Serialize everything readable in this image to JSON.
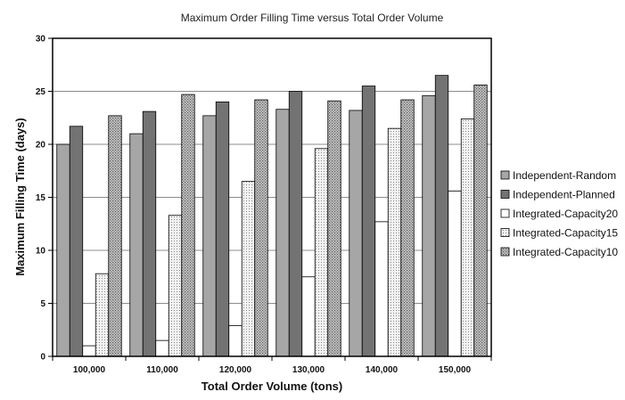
{
  "chart_data": {
    "type": "bar",
    "title": "Maximum Order Filling Time versus Total Order Volume",
    "xlabel": "Total Order Volume (tons)",
    "ylabel": "Maximum Filling Time (days)",
    "ylim": [
      0,
      30
    ],
    "yticks": [
      0,
      5,
      10,
      15,
      20,
      25,
      30
    ],
    "grid": true,
    "legend_position": "right",
    "categories": [
      "100,000",
      "110,000",
      "120,000",
      "130,000",
      "140,000",
      "150,000"
    ],
    "series": [
      {
        "name": "Independent-Random",
        "color": "#a6a6a6",
        "pattern": "solid",
        "values": [
          20.0,
          21.0,
          22.7,
          23.3,
          23.2,
          24.6
        ]
      },
      {
        "name": "Independent-Planned",
        "color": "#737373",
        "pattern": "solid",
        "values": [
          21.7,
          23.1,
          24.0,
          25.0,
          25.5,
          26.5
        ]
      },
      {
        "name": "Integrated-Capacity20",
        "color": "#ffffff",
        "pattern": "solid",
        "values": [
          1.0,
          1.5,
          2.9,
          7.5,
          12.7,
          15.6
        ]
      },
      {
        "name": "Integrated-Capacity15",
        "color": "#e8e8e8",
        "pattern": "fine-dots",
        "values": [
          7.8,
          13.3,
          16.5,
          19.6,
          21.5,
          22.4
        ]
      },
      {
        "name": "Integrated-Capacity10",
        "color": "#b5b5b5",
        "pattern": "dense-dots",
        "values": [
          22.7,
          24.7,
          24.2,
          24.1,
          24.2,
          25.6
        ]
      }
    ]
  }
}
